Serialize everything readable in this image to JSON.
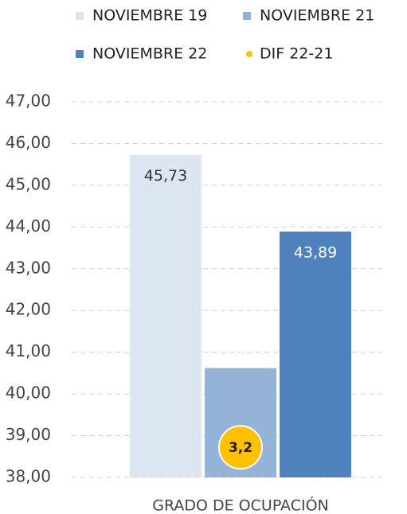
{
  "chart_data": {
    "type": "bar",
    "categories": [
      "GRADO DE OCUPACIÓN"
    ],
    "series": [
      {
        "name": "NOVIEMBRE 19",
        "color": "#dce6f2",
        "values": [
          45.73
        ],
        "value_labels": [
          "45,73"
        ]
      },
      {
        "name": "NOVIEMBRE 21",
        "color": "#95b3d7",
        "values": [
          40.62
        ]
      },
      {
        "name": "NOVIEMBRE 22",
        "color": "#4f81bd",
        "values": [
          43.89
        ],
        "value_labels": [
          "43,89"
        ]
      },
      {
        "name": "DIF 22-21",
        "color": "#ffc000",
        "type": "scatter",
        "axis": "y2",
        "values": [
          3.2
        ],
        "value_labels": [
          "3,2"
        ]
      }
    ],
    "ylim": [
      38,
      47
    ],
    "yticks": [
      {
        "value": 38,
        "label": "38,00"
      },
      {
        "value": 39,
        "label": "39,00"
      },
      {
        "value": 40,
        "label": "40,00"
      },
      {
        "value": 41,
        "label": "41,00"
      },
      {
        "value": 42,
        "label": "42,00"
      },
      {
        "value": 43,
        "label": "43,00"
      },
      {
        "value": 44,
        "label": "44,00"
      },
      {
        "value": 45,
        "label": "45,00"
      },
      {
        "value": 46,
        "label": "46,00"
      },
      {
        "value": 47,
        "label": "47,00"
      }
    ],
    "y2lim": [
      0,
      40
    ],
    "grid": true
  }
}
